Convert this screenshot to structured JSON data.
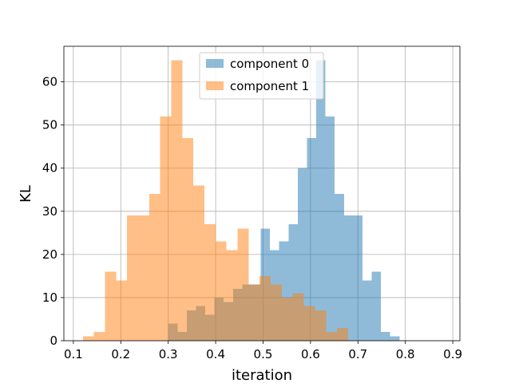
{
  "chart_data": {
    "type": "histogram",
    "xlabel": "iteration",
    "ylabel": "KL",
    "xlim": [
      0.08,
      0.915
    ],
    "ylim": [
      0,
      68.25
    ],
    "x_ticks": [
      0.1,
      0.2,
      0.3,
      0.4,
      0.5,
      0.6,
      0.7,
      0.8,
      0.9
    ],
    "y_ticks": [
      0,
      10,
      20,
      30,
      40,
      50,
      60
    ],
    "grid": true,
    "legend_position": "top-center",
    "series": [
      {
        "name": "component 0",
        "color": "#1f77b4",
        "alpha": 0.5,
        "bin_start": 0.3,
        "bin_width": 0.0195,
        "counts": [
          4,
          2,
          7,
          8,
          6,
          10,
          9,
          12,
          13,
          13,
          26,
          21,
          23,
          27,
          40,
          47,
          65,
          52,
          34,
          29,
          29,
          14,
          16,
          2,
          1
        ]
      },
      {
        "name": "component 1",
        "color": "#ff7f0e",
        "alpha": 0.5,
        "bin_start": 0.12,
        "bin_width": 0.0233,
        "counts": [
          1,
          2,
          16,
          14,
          29,
          29,
          34,
          52,
          65,
          47,
          36,
          27,
          23,
          21,
          26,
          13,
          15,
          13,
          10,
          11,
          8,
          7,
          2,
          3
        ]
      }
    ]
  }
}
